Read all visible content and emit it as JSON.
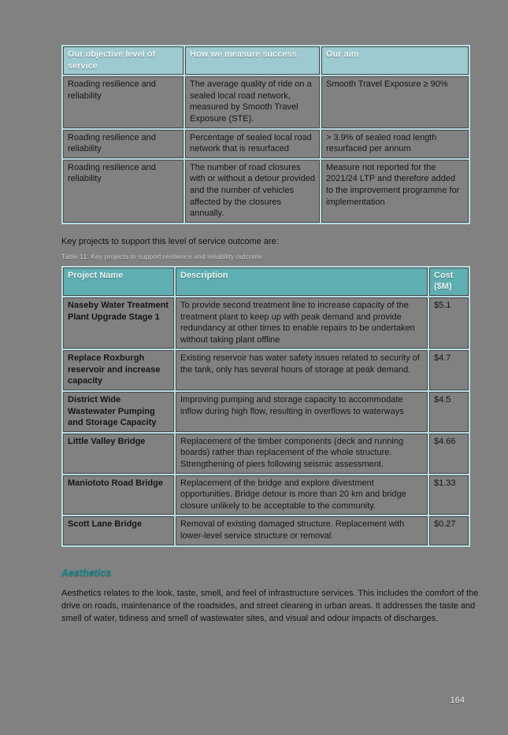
{
  "colors": {
    "page_background": "#818181",
    "los_header_bg": "#9dcad0",
    "projects_header_bg": "#5fafb2",
    "table_grid": "#b9dde0",
    "header_text": "#ecf6f6",
    "heading_teal": "#0f8589",
    "body_text": "#121212"
  },
  "los_table": {
    "headers": [
      "Our objective level of service",
      "How we measure success",
      "Our aim"
    ],
    "rows": [
      {
        "objective": "Roading resilience and reliability",
        "measure": "The average quality of ride on a sealed local road network, measured by Smooth Travel Exposure (STE).",
        "aim": "Smooth Travel Exposure ≥ 90%"
      },
      {
        "objective": "Roading resilience and reliability",
        "measure": "Percentage of sealed local road network that is resurfaced",
        "aim": "> 3.9% of sealed road length resurfaced per annum"
      },
      {
        "objective": "Roading resilience and reliability",
        "measure": "The number of road closures with or without a detour provided and the number of vehicles affected by the closures annually.",
        "aim": "Measure not reported for the 2021/24 LTP and therefore added to the improvement programme for implementation"
      }
    ]
  },
  "key_projects_intro": "Key projects to support this level of service outcome are:",
  "table_caption": "Table 11: Key projects to support resilience and reliability outcome",
  "projects_table": {
    "headers": [
      "Project Name",
      "Description",
      "Cost ($M)"
    ],
    "rows": [
      {
        "name": "Naseby Water Treatment Plant Upgrade Stage 1",
        "description": "To provide second treatment line to increase capacity of the treatment plant to keep up with peak demand and provide redundancy at other times to enable repairs to be undertaken without taking plant offline",
        "cost": "$5.1"
      },
      {
        "name": "Replace Roxburgh reservoir and increase capacity",
        "description": "Existing reservoir has water safety issues related to security of the tank, only has several hours of storage at peak demand.",
        "cost": "$4.7"
      },
      {
        "name": "District Wide Wastewater Pumping and Storage Capacity",
        "description": "Improving pumping and storage capacity to accommodate inflow during high flow, resulting in overflows to waterways",
        "cost": "$4.5"
      },
      {
        "name": "Little Valley Bridge",
        "description": "Replacement of the timber components (deck and running boards) rather than replacement of the whole structure. Strengthening of piers following seismic assessment.",
        "cost": "$4.66"
      },
      {
        "name": "Maniototo Road Bridge",
        "description": "Replacement of the bridge and explore divestment opportunities. Bridge detour is more than 20 km and bridge closure unlikely to be acceptable to the community.",
        "cost": "$1.33"
      },
      {
        "name": "Scott Lane Bridge",
        "description": "Removal of existing damaged structure. Replacement with lower-level service structure or removal.",
        "cost": "$0.27"
      }
    ]
  },
  "aesthetics": {
    "heading": "Aesthetics",
    "paragraph": "Aesthetics relates to the look, taste, smell, and feel of infrastructure services. This includes the comfort of the drive on roads, maintenance of the roadsides, and street cleaning in urban areas. It addresses the taste and smell of water, tidiness and smell of wastewater sites, and visual and odour impacts of discharges."
  },
  "page": {
    "number": "164"
  }
}
